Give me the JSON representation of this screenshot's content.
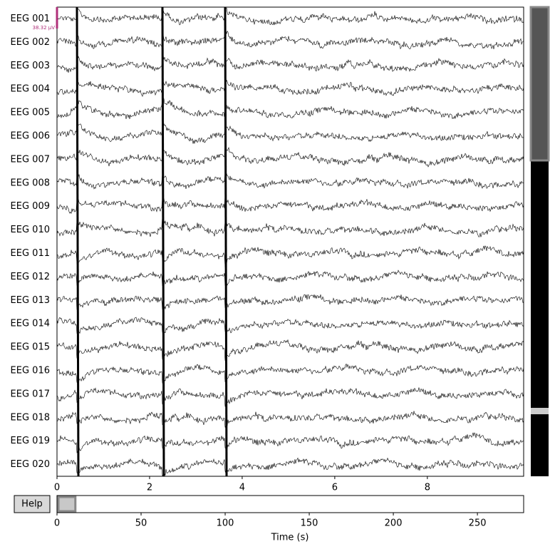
{
  "chart_data": {
    "type": "eeg-browser",
    "channels": [
      "EEG 001",
      "EEG 002",
      "EEG 003",
      "EEG 004",
      "EEG 005",
      "EEG 006",
      "EEG 007",
      "EEG 008",
      "EEG 009",
      "EEG 010",
      "EEG 011",
      "EEG 012",
      "EEG 013",
      "EEG 014",
      "EEG 015",
      "EEG 016",
      "EEG 017",
      "EEG 018",
      "EEG 019",
      "EEG 020"
    ],
    "scale_label": "38.32 µV",
    "xlim": [
      0,
      10.08
    ],
    "xticks": [
      0,
      2,
      4,
      6,
      8
    ],
    "overview": {
      "xlim": [
        0,
        277.5
      ],
      "xticks": [
        0,
        50,
        100,
        150,
        200,
        250
      ],
      "xlabel": "Time (s)"
    },
    "help_button": "Help"
  }
}
